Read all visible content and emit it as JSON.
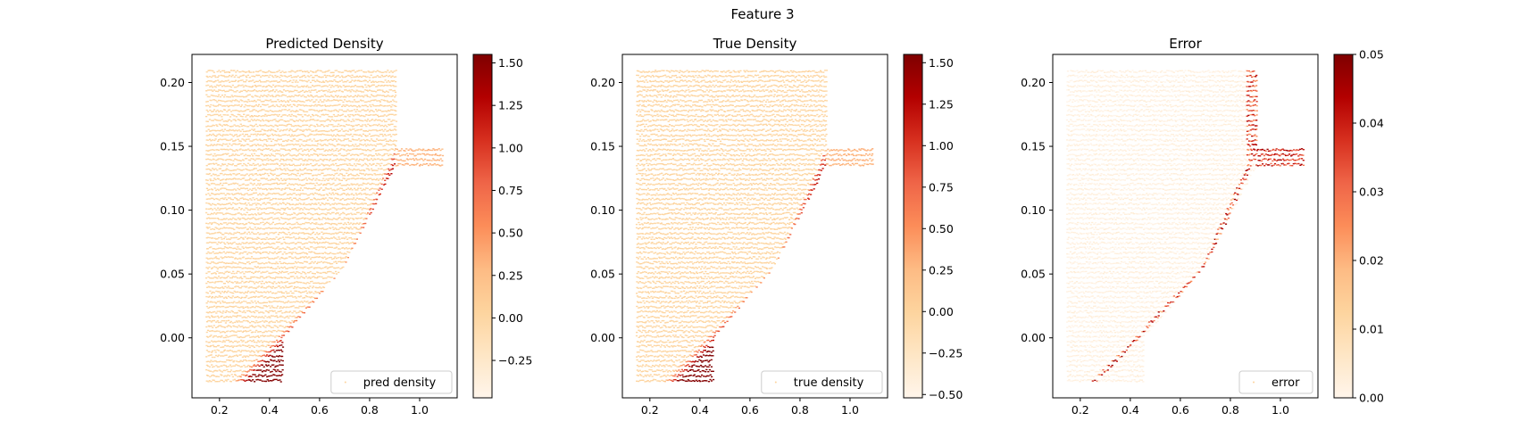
{
  "figure": {
    "suptitle": "Feature 3"
  },
  "colors": {
    "colormap": [
      "#fff5eb",
      "#fee6c5",
      "#fdd49e",
      "#fdbb84",
      "#fc8d59",
      "#ef6548",
      "#d7301f",
      "#b30000",
      "#7f0000"
    ]
  },
  "chart_data": [
    {
      "type": "scatter",
      "title": "Predicted Density",
      "legend": {
        "label": "pred density",
        "placement": "lower-right"
      },
      "xlim": [
        0.09,
        1.15
      ],
      "ylim": [
        -0.047,
        0.222
      ],
      "xticks": [
        0.2,
        0.4,
        0.6,
        0.8,
        1.0
      ],
      "yticks": [
        0.0,
        0.05,
        0.1,
        0.15,
        0.2
      ],
      "xtick_labels": [
        "0.2",
        "0.4",
        "0.6",
        "0.8",
        "1.0"
      ],
      "ytick_labels": [
        "0.00",
        "0.05",
        "0.10",
        "0.15",
        "0.20"
      ],
      "colorbar": {
        "range": [
          -0.47,
          1.55
        ],
        "ticks": [
          -0.25,
          0.0,
          0.25,
          0.5,
          0.75,
          1.0,
          1.25,
          1.5
        ],
        "tick_labels": [
          "−0.25",
          "0.00",
          "0.25",
          "0.50",
          "0.75",
          "1.00",
          "1.25",
          "1.50"
        ]
      },
      "field": "density"
    },
    {
      "type": "scatter",
      "title": "True Density",
      "legend": {
        "label": "true density",
        "placement": "lower-right"
      },
      "xlim": [
        0.09,
        1.15
      ],
      "ylim": [
        -0.047,
        0.222
      ],
      "xticks": [
        0.2,
        0.4,
        0.6,
        0.8,
        1.0
      ],
      "yticks": [
        0.0,
        0.05,
        0.1,
        0.15,
        0.2
      ],
      "xtick_labels": [
        "0.2",
        "0.4",
        "0.6",
        "0.8",
        "1.0"
      ],
      "ytick_labels": [
        "0.00",
        "0.05",
        "0.10",
        "0.15",
        "0.20"
      ],
      "colorbar": {
        "range": [
          -0.52,
          1.55
        ],
        "ticks": [
          -0.5,
          -0.25,
          0.0,
          0.25,
          0.5,
          0.75,
          1.0,
          1.25,
          1.5
        ],
        "tick_labels": [
          "−0.50",
          "−0.25",
          "0.00",
          "0.25",
          "0.50",
          "0.75",
          "1.00",
          "1.25",
          "1.50"
        ]
      },
      "field": "density"
    },
    {
      "type": "scatter",
      "title": "Error",
      "legend": {
        "label": "error",
        "placement": "lower-right"
      },
      "xlim": [
        0.09,
        1.15
      ],
      "ylim": [
        -0.047,
        0.222
      ],
      "xticks": [
        0.2,
        0.4,
        0.6,
        0.8,
        1.0
      ],
      "yticks": [
        0.0,
        0.05,
        0.1,
        0.15,
        0.2
      ],
      "xtick_labels": [
        "0.2",
        "0.4",
        "0.6",
        "0.8",
        "1.0"
      ],
      "ytick_labels": [
        "0.00",
        "0.05",
        "0.10",
        "0.15",
        "0.20"
      ],
      "colorbar": {
        "range": [
          0.0,
          0.05
        ],
        "ticks": [
          0.0,
          0.01,
          0.02,
          0.03,
          0.04,
          0.05
        ],
        "tick_labels": [
          "0.00",
          "0.01",
          "0.02",
          "0.03",
          "0.04",
          "0.05"
        ]
      },
      "field": "error"
    }
  ]
}
